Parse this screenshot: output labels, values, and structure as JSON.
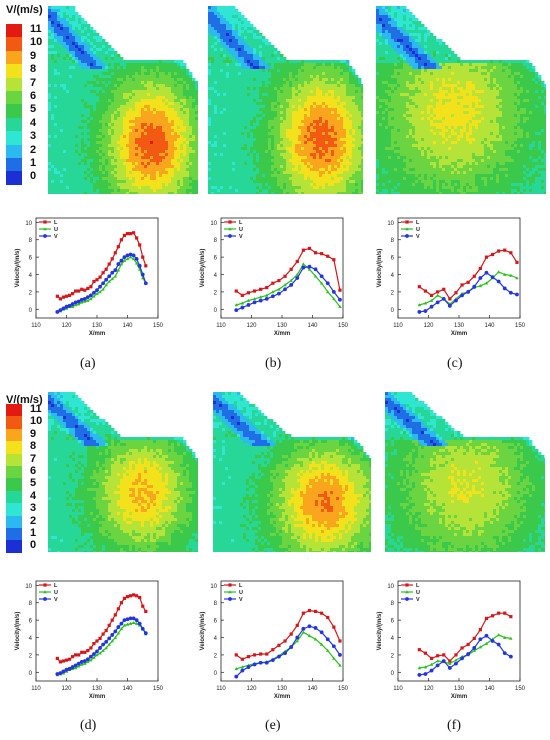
{
  "colorbar": {
    "title": "V/(m/s)",
    "levels": [
      "11",
      "10",
      "9",
      "8",
      "7",
      "6",
      "5",
      "4",
      "3",
      "2",
      "1",
      "0"
    ],
    "colors": [
      "#e21a12",
      "#f25a14",
      "#f9a51e",
      "#f3e21b",
      "#b6e338",
      "#6ad541",
      "#3ac94a",
      "#27d797",
      "#2ee6d2",
      "#2bb9ef",
      "#1f6ee6",
      "#1b2fd4"
    ]
  },
  "field_panels": [
    {
      "label": "(a)"
    },
    {
      "label": "(b)"
    },
    {
      "label": "(c)"
    },
    {
      "label": "(d)"
    },
    {
      "label": "(e)"
    },
    {
      "label": "(f)"
    }
  ],
  "series_colors": {
    "L": "#d2181c",
    "U": "#2bbf1e",
    "V": "#2435e0"
  },
  "chart_data": [
    {
      "type": "line",
      "panel": "(a)",
      "xlabel": "X/mm",
      "ylabel": "Velocity/(m/s)",
      "xlim": [
        110,
        150
      ],
      "ylim": [
        -1,
        10.5
      ],
      "xticks": [
        110,
        120,
        130,
        140,
        150
      ],
      "yticks": [
        0,
        2,
        4,
        6,
        8,
        10
      ],
      "legend": "top-left",
      "series": [
        {
          "name": "L",
          "x": [
            117,
            118,
            119,
            120,
            121,
            122,
            123,
            124,
            125,
            126,
            127,
            128,
            129,
            130,
            131,
            132,
            133,
            134,
            135,
            136,
            137,
            138,
            139,
            140,
            141,
            142,
            143,
            144,
            145,
            146
          ],
          "values": [
            1.5,
            1.2,
            1.4,
            1.5,
            1.6,
            1.8,
            2.1,
            2.1,
            2.3,
            2.2,
            2.4,
            2.6,
            3.2,
            3.4,
            3.7,
            4.2,
            4.6,
            5.2,
            5.8,
            6.5,
            7.2,
            8.0,
            8.5,
            8.7,
            8.7,
            8.8,
            8.2,
            7.4,
            6.0,
            5.0
          ]
        },
        {
          "name": "U",
          "x": [
            117,
            118,
            119,
            120,
            121,
            122,
            123,
            124,
            125,
            126,
            127,
            128,
            129,
            130,
            131,
            132,
            133,
            134,
            135,
            136,
            137,
            138,
            139,
            140,
            141,
            142,
            143,
            144,
            145,
            146
          ],
          "values": [
            -0.3,
            -0.2,
            0.0,
            0.1,
            0.3,
            0.3,
            0.5,
            0.6,
            0.8,
            0.9,
            1.0,
            1.2,
            1.5,
            1.8,
            2.0,
            2.3,
            2.8,
            3.2,
            3.5,
            3.8,
            4.5,
            5.2,
            5.6,
            5.8,
            6.0,
            5.8,
            5.3,
            4.6,
            3.6,
            3.0
          ]
        },
        {
          "name": "V",
          "x": [
            117,
            118,
            119,
            120,
            121,
            122,
            123,
            124,
            125,
            126,
            127,
            128,
            129,
            130,
            131,
            132,
            133,
            134,
            135,
            136,
            137,
            138,
            139,
            140,
            141,
            142,
            143,
            144,
            145,
            146
          ],
          "values": [
            -0.3,
            -0.1,
            0.1,
            0.3,
            0.4,
            0.6,
            0.8,
            0.9,
            1.1,
            1.2,
            1.4,
            1.6,
            1.9,
            2.2,
            2.6,
            3.0,
            3.4,
            3.8,
            4.2,
            4.5,
            5.2,
            5.6,
            6.0,
            6.2,
            6.3,
            6.2,
            5.8,
            5.0,
            4.0,
            3.0
          ]
        }
      ]
    },
    {
      "type": "line",
      "panel": "(b)",
      "xlabel": "X/mm",
      "ylabel": "Velocity/(m/s)",
      "xlim": [
        110,
        150
      ],
      "ylim": [
        -1,
        10.5
      ],
      "xticks": [
        110,
        120,
        130,
        140,
        150
      ],
      "yticks": [
        0,
        2,
        4,
        6,
        8,
        10
      ],
      "legend": "top-left",
      "series": [
        {
          "name": "L",
          "x": [
            115,
            117,
            119,
            121,
            123,
            125,
            127,
            129,
            131,
            133,
            135,
            137,
            139,
            141,
            143,
            145,
            147,
            149
          ],
          "values": [
            2.1,
            1.6,
            1.9,
            2.1,
            2.3,
            2.5,
            3.0,
            3.3,
            3.8,
            4.6,
            5.5,
            6.8,
            7.0,
            6.5,
            6.4,
            6.1,
            5.7,
            2.2
          ]
        },
        {
          "name": "U",
          "x": [
            115,
            117,
            119,
            121,
            123,
            125,
            127,
            129,
            131,
            133,
            135,
            137,
            139,
            141,
            143,
            145,
            147,
            149
          ],
          "values": [
            0.5,
            0.7,
            1.0,
            1.2,
            1.4,
            1.6,
            2.0,
            2.3,
            2.8,
            3.3,
            4.0,
            5.2,
            4.6,
            3.8,
            3.0,
            2.0,
            1.2,
            0.3
          ]
        },
        {
          "name": "V",
          "x": [
            115,
            117,
            119,
            121,
            123,
            125,
            127,
            129,
            131,
            133,
            135,
            137,
            139,
            141,
            143,
            145,
            147,
            149
          ],
          "values": [
            -0.1,
            0.2,
            0.5,
            0.8,
            1.0,
            1.2,
            1.5,
            1.8,
            2.3,
            2.8,
            3.6,
            4.8,
            4.9,
            4.6,
            3.8,
            3.0,
            2.0,
            1.1
          ]
        }
      ]
    },
    {
      "type": "line",
      "panel": "(c)",
      "xlabel": "X/mm",
      "ylabel": "Velocity/(m/s)",
      "xlim": [
        110,
        150
      ],
      "ylim": [
        -1,
        10.5
      ],
      "xticks": [
        110,
        120,
        130,
        140,
        150
      ],
      "yticks": [
        0,
        2,
        4,
        6,
        8,
        10
      ],
      "legend": "top-left",
      "series": [
        {
          "name": "L",
          "x": [
            117,
            119,
            121,
            123,
            125,
            127,
            129,
            131,
            133,
            135,
            137,
            139,
            141,
            143,
            145,
            147,
            149
          ],
          "values": [
            2.6,
            2.1,
            1.6,
            2.0,
            2.3,
            1.2,
            1.9,
            2.8,
            3.1,
            3.8,
            4.7,
            6.0,
            6.3,
            6.7,
            6.8,
            6.5,
            5.4
          ]
        },
        {
          "name": "U",
          "x": [
            117,
            119,
            121,
            123,
            125,
            127,
            129,
            131,
            133,
            135,
            137,
            139,
            141,
            143,
            145,
            147,
            149
          ],
          "values": [
            0.5,
            0.7,
            1.0,
            1.6,
            1.2,
            0.6,
            1.2,
            1.8,
            2.0,
            2.5,
            2.7,
            3.0,
            3.6,
            4.3,
            4.0,
            3.9,
            3.6
          ]
        },
        {
          "name": "V",
          "x": [
            117,
            119,
            121,
            123,
            125,
            127,
            129,
            131,
            133,
            135,
            137,
            139,
            141,
            143,
            145,
            147,
            149
          ],
          "values": [
            -0.3,
            -0.2,
            0.3,
            0.8,
            1.2,
            0.4,
            1.0,
            1.6,
            2.0,
            2.6,
            3.6,
            4.2,
            3.7,
            3.2,
            2.4,
            1.9,
            1.7
          ]
        }
      ]
    },
    {
      "type": "line",
      "panel": "(d)",
      "xlabel": "X/mm",
      "ylabel": "Velocity/(m/s)",
      "xlim": [
        110,
        150
      ],
      "ylim": [
        -1,
        10.5
      ],
      "xticks": [
        110,
        120,
        130,
        140,
        150
      ],
      "yticks": [
        0,
        2,
        4,
        6,
        8,
        10
      ],
      "legend": "top-left",
      "series": [
        {
          "name": "L",
          "x": [
            117,
            118,
            119,
            120,
            121,
            122,
            123,
            124,
            125,
            126,
            127,
            128,
            129,
            130,
            131,
            132,
            133,
            134,
            135,
            136,
            137,
            138,
            139,
            140,
            141,
            142,
            143,
            144,
            145,
            146
          ],
          "values": [
            1.6,
            1.2,
            1.3,
            1.4,
            1.5,
            1.8,
            2.0,
            2.0,
            2.3,
            2.3,
            2.5,
            2.8,
            3.3,
            3.6,
            3.9,
            4.4,
            4.8,
            5.4,
            6.0,
            6.6,
            7.3,
            8.0,
            8.5,
            8.7,
            8.8,
            8.9,
            8.8,
            8.6,
            7.6,
            7.0
          ]
        },
        {
          "name": "U",
          "x": [
            117,
            118,
            119,
            120,
            121,
            122,
            123,
            124,
            125,
            126,
            127,
            128,
            129,
            130,
            131,
            132,
            133,
            134,
            135,
            136,
            137,
            138,
            139,
            140,
            141,
            142,
            143,
            144,
            145,
            146
          ],
          "values": [
            -0.3,
            -0.2,
            -0.1,
            0.1,
            0.3,
            0.4,
            0.5,
            0.7,
            0.9,
            1.0,
            1.2,
            1.4,
            1.7,
            2.0,
            2.2,
            2.5,
            2.8,
            3.2,
            3.6,
            4.0,
            4.5,
            5.0,
            5.4,
            5.5,
            5.6,
            5.7,
            5.6,
            5.4,
            5.0,
            4.4
          ]
        },
        {
          "name": "V",
          "x": [
            117,
            118,
            119,
            120,
            121,
            122,
            123,
            124,
            125,
            126,
            127,
            128,
            129,
            130,
            131,
            132,
            133,
            134,
            135,
            136,
            137,
            138,
            139,
            140,
            141,
            142,
            143,
            144,
            145,
            146
          ],
          "values": [
            -0.2,
            -0.1,
            0.1,
            0.3,
            0.4,
            0.6,
            0.8,
            1.0,
            1.2,
            1.3,
            1.5,
            1.8,
            2.1,
            2.4,
            2.8,
            3.2,
            3.5,
            3.9,
            4.3,
            4.7,
            5.2,
            5.6,
            6.0,
            6.1,
            6.2,
            6.2,
            6.0,
            5.6,
            5.0,
            4.5
          ]
        }
      ]
    },
    {
      "type": "line",
      "panel": "(e)",
      "xlabel": "X/mm",
      "ylabel": "Velocity/(m/s)",
      "xlim": [
        110,
        150
      ],
      "ylim": [
        -1,
        10.5
      ],
      "xticks": [
        110,
        120,
        130,
        140,
        150
      ],
      "yticks": [
        0,
        2,
        4,
        6,
        8,
        10
      ],
      "legend": "top-left",
      "series": [
        {
          "name": "L",
          "x": [
            115,
            117,
            119,
            121,
            123,
            125,
            127,
            129,
            131,
            133,
            135,
            137,
            139,
            141,
            143,
            145,
            147,
            149
          ],
          "values": [
            2.0,
            1.5,
            1.8,
            2.0,
            2.1,
            2.1,
            2.6,
            3.1,
            3.6,
            4.4,
            5.4,
            6.8,
            7.1,
            7.0,
            6.8,
            6.3,
            5.2,
            3.6
          ]
        },
        {
          "name": "U",
          "x": [
            115,
            117,
            119,
            121,
            123,
            125,
            127,
            129,
            131,
            133,
            135,
            137,
            139,
            141,
            143,
            145,
            147,
            149
          ],
          "values": [
            0.4,
            0.6,
            0.8,
            1.0,
            1.1,
            1.2,
            1.5,
            1.9,
            2.4,
            2.9,
            3.6,
            4.6,
            4.2,
            3.8,
            3.2,
            2.5,
            1.6,
            0.8
          ]
        },
        {
          "name": "V",
          "x": [
            115,
            117,
            119,
            121,
            123,
            125,
            127,
            129,
            131,
            133,
            135,
            137,
            139,
            141,
            143,
            145,
            147,
            149
          ],
          "values": [
            -0.5,
            0.2,
            0.6,
            0.9,
            1.1,
            1.1,
            1.4,
            1.8,
            2.2,
            2.9,
            4.0,
            5.0,
            5.3,
            5.1,
            4.6,
            3.8,
            3.0,
            2.0
          ]
        }
      ]
    },
    {
      "type": "line",
      "panel": "(f)",
      "xlabel": "X/mm",
      "ylabel": "Velocity/(m/s)",
      "xlim": [
        110,
        150
      ],
      "ylim": [
        -1,
        10.5
      ],
      "xticks": [
        110,
        120,
        130,
        140,
        150
      ],
      "yticks": [
        0,
        2,
        4,
        6,
        8,
        10
      ],
      "legend": "top-left",
      "series": [
        {
          "name": "L",
          "x": [
            117,
            119,
            121,
            123,
            125,
            127,
            129,
            131,
            133,
            135,
            137,
            139,
            141,
            143,
            145,
            147
          ],
          "values": [
            2.6,
            2.2,
            1.6,
            1.9,
            2.0,
            1.3,
            2.0,
            2.8,
            3.2,
            3.9,
            4.9,
            6.2,
            6.5,
            6.8,
            6.8,
            6.4
          ]
        },
        {
          "name": "U",
          "x": [
            117,
            119,
            121,
            123,
            125,
            127,
            129,
            131,
            133,
            135,
            137,
            139,
            141,
            143,
            145,
            147
          ],
          "values": [
            0.5,
            0.6,
            0.9,
            1.3,
            1.2,
            1.0,
            1.4,
            1.8,
            2.0,
            2.5,
            2.9,
            3.3,
            3.8,
            4.3,
            4.0,
            3.9
          ]
        },
        {
          "name": "V",
          "x": [
            117,
            119,
            121,
            123,
            125,
            127,
            129,
            131,
            133,
            135,
            137,
            139,
            141,
            143,
            145,
            147
          ],
          "values": [
            -0.3,
            -0.2,
            0.2,
            0.8,
            1.3,
            0.5,
            1.0,
            1.6,
            2.1,
            2.8,
            3.8,
            4.2,
            3.6,
            3.2,
            2.2,
            1.8
          ]
        }
      ]
    }
  ]
}
